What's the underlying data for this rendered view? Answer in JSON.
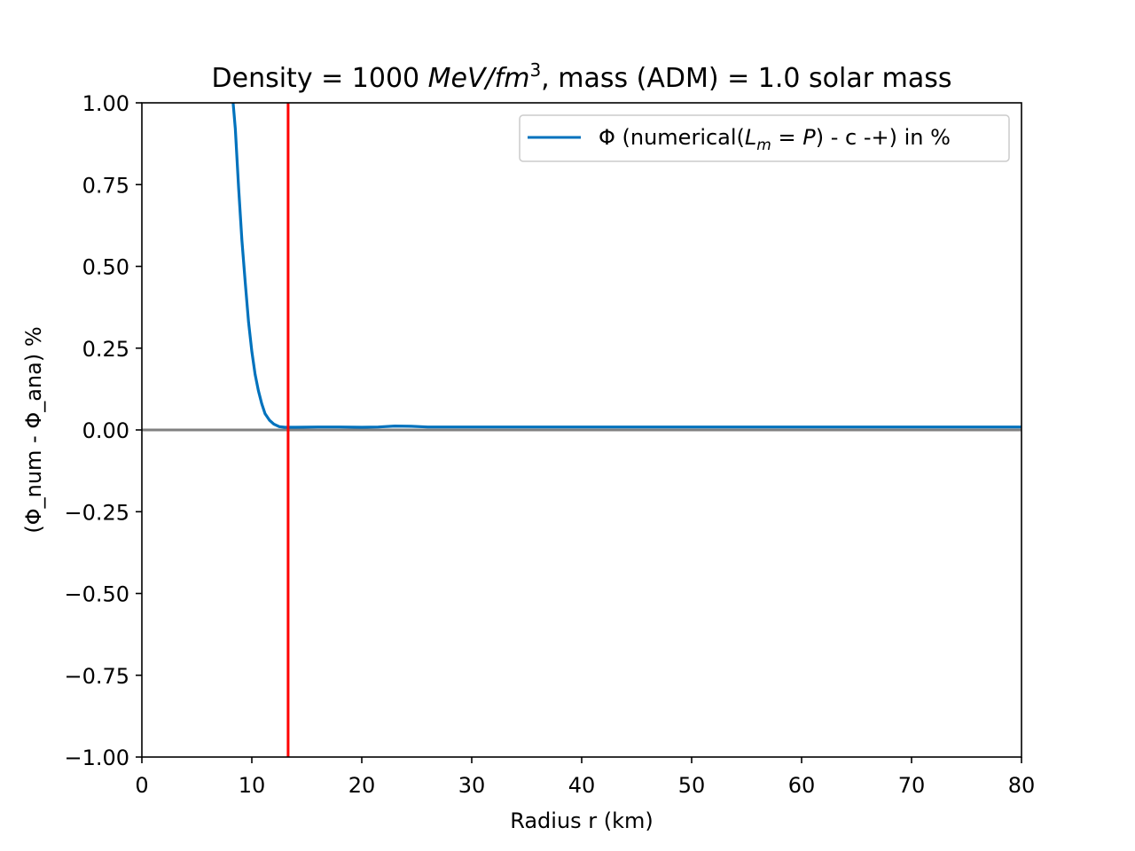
{
  "chart_data": {
    "type": "line",
    "title_parts": {
      "prefix": "Density = 1000 ",
      "unit_italic": "MeV/fm",
      "unit_exp": "3",
      "suffix": ", mass (ADM) = 1.0 solar mass"
    },
    "xlabel": "Radius r (km)",
    "ylabel": "(Φ_num - Φ_ana) %",
    "xlim": [
      0,
      80
    ],
    "ylim": [
      -1.0,
      1.0
    ],
    "x_ticks": [
      0,
      10,
      20,
      30,
      40,
      50,
      60,
      70,
      80
    ],
    "x_tick_labels": [
      "0",
      "10",
      "20",
      "30",
      "40",
      "50",
      "60",
      "70",
      "80"
    ],
    "y_ticks": [
      1.0,
      0.75,
      0.5,
      0.25,
      0.0,
      -0.25,
      -0.5,
      -0.75,
      -1.0
    ],
    "y_tick_labels": [
      "1.00",
      "0.75",
      "0.50",
      "0.25",
      "0.00",
      "−0.25",
      "−0.50",
      "−0.75",
      "−1.00"
    ],
    "grid": false,
    "legend_position": "upper right",
    "legend_parts": {
      "prefix": "Φ (numerical(",
      "L": "L",
      "sub": "m",
      "eq": " = ",
      "P": "P",
      "suffix": ") - c -+) in %"
    },
    "series": [
      {
        "color": "#0072bd",
        "x": [
          8.3,
          8.5,
          8.8,
          9.1,
          9.4,
          9.7,
          10.0,
          10.3,
          10.6,
          10.9,
          11.2,
          11.6,
          12.0,
          12.5,
          13.0,
          14.0,
          16.0,
          18.0,
          20.0,
          21.5,
          23.0,
          24.5,
          26.0,
          30.0,
          40.0,
          50.0,
          60.0,
          70.0,
          80.0
        ],
        "values": [
          1.0,
          0.92,
          0.74,
          0.58,
          0.45,
          0.33,
          0.24,
          0.17,
          0.12,
          0.08,
          0.05,
          0.03,
          0.018,
          0.01,
          0.008,
          0.008,
          0.009,
          0.009,
          0.008,
          0.009,
          0.012,
          0.011,
          0.009,
          0.009,
          0.009,
          0.009,
          0.009,
          0.009,
          0.009
        ]
      }
    ],
    "vline": {
      "x": 13.3,
      "color": "#ff0000"
    },
    "hline": {
      "y": 0.0,
      "color": "#808080"
    }
  }
}
